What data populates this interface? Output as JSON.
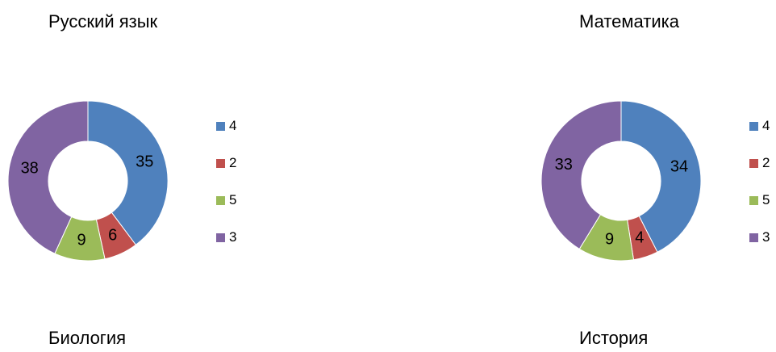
{
  "chart_data": [
    {
      "type": "pie",
      "variant": "donut",
      "title": "Русский язык",
      "categories": [
        "4",
        "2",
        "5",
        "3"
      ],
      "values": [
        35,
        6,
        9,
        38
      ],
      "colors": [
        "#4F81BD",
        "#C0504D",
        "#9BBB59",
        "#8064A2"
      ],
      "legend_position": "right"
    },
    {
      "type": "pie",
      "variant": "donut",
      "title": "Математика",
      "categories": [
        "4",
        "2",
        "5",
        "3"
      ],
      "values": [
        34,
        4,
        9,
        33
      ],
      "colors": [
        "#4F81BD",
        "#C0504D",
        "#9BBB59",
        "#8064A2"
      ],
      "legend_position": "right"
    },
    {
      "type": "pie",
      "title": "Биология",
      "partial": true
    },
    {
      "type": "pie",
      "title": "История",
      "partial": true
    }
  ]
}
